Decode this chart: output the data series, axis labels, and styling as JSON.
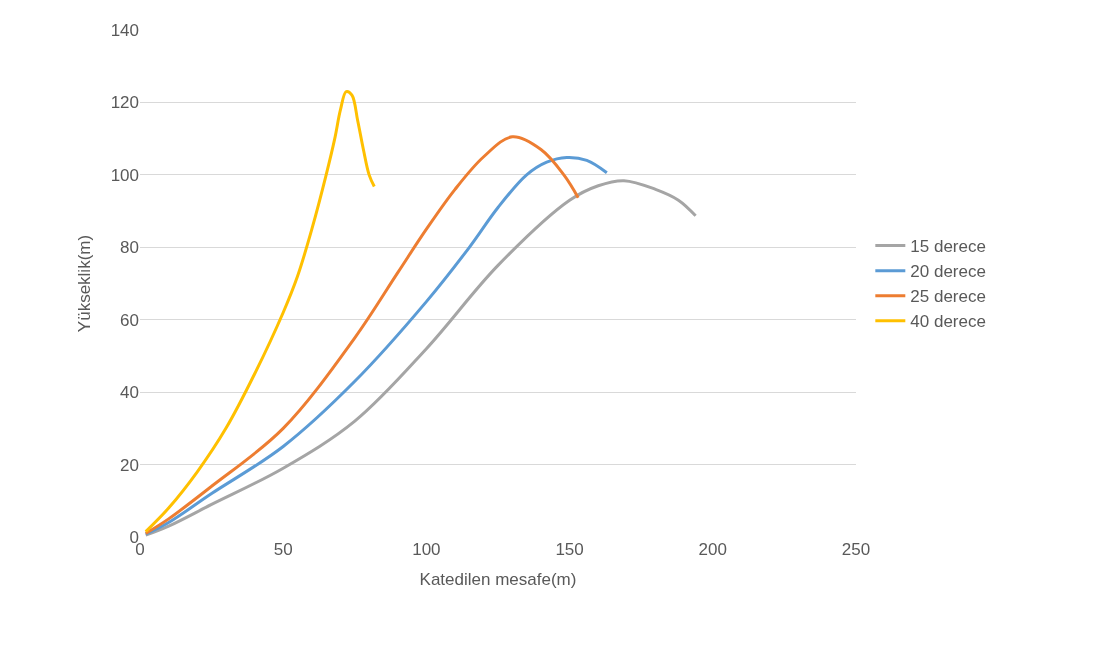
{
  "chart_data": {
    "type": "line",
    "xlabel": "Katedilen mesafe(m)",
    "ylabel": "Yükseklik(m)",
    "xlim": [
      0,
      250
    ],
    "xticks": [
      0,
      50,
      100,
      150,
      200,
      250
    ],
    "ylim": [
      0,
      140
    ],
    "yticks": [
      0,
      20,
      40,
      60,
      80,
      100,
      120,
      140
    ],
    "grid": "y",
    "legend": "right",
    "marker": "none",
    "line_style": "solid",
    "series": [
      {
        "name": "15 derece",
        "color": "#a5a5a5",
        "x": [
          2,
          10,
          25,
          50,
          75,
          100,
          125,
          150,
          160,
          169,
          180,
          188,
          194
        ],
        "values": [
          0.5,
          3,
          9,
          19,
          32,
          52,
          75,
          93,
          97,
          98.4,
          96,
          93,
          88.7
        ]
      },
      {
        "name": "20 derece",
        "color": "#5b9bd5",
        "x": [
          2,
          10,
          25,
          50,
          75,
          100,
          115,
          125,
          135,
          142,
          149,
          156,
          163
        ],
        "values": [
          0.8,
          4,
          12,
          25,
          43,
          65,
          80,
          91,
          100,
          103.5,
          104.8,
          104,
          100.6
        ]
      },
      {
        "name": "25 derece",
        "color": "#ed7d31",
        "x": [
          2,
          10,
          25,
          50,
          75,
          90,
          100,
          110,
          120,
          130,
          140,
          148,
          153
        ],
        "values": [
          1,
          5,
          14,
          30,
          55,
          73,
          85,
          96,
          105,
          110.5,
          107,
          100,
          93.7
        ]
      },
      {
        "name": "40 derece",
        "color": "#ffc000",
        "x": [
          2,
          10,
          20,
          30,
          40,
          50,
          55,
          60,
          65,
          68,
          70,
          72,
          74,
          76,
          78,
          80,
          81.8
        ],
        "values": [
          1.5,
          8,
          18,
          30,
          45,
          62,
          72,
          85,
          100,
          110,
          118,
          123,
          122,
          115,
          107,
          100,
          96.8
        ]
      }
    ]
  }
}
